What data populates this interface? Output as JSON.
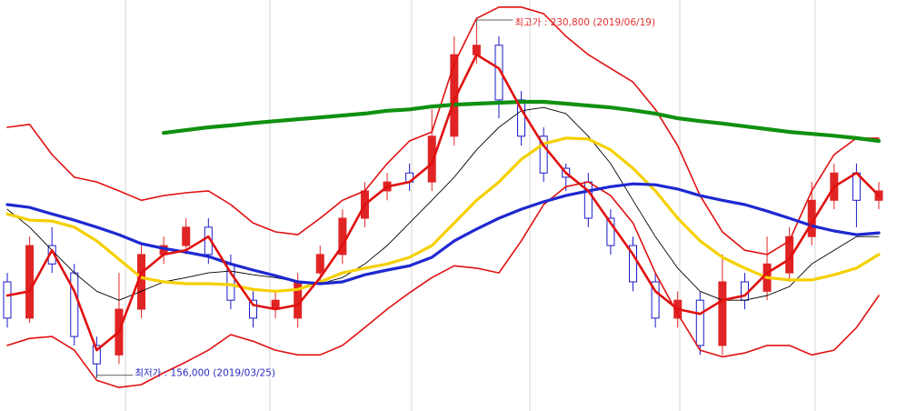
{
  "chart_data": {
    "type": "candlestick",
    "categories": [
      null,
      null,
      null,
      null,
      null,
      null,
      null,
      null,
      null,
      null,
      null,
      null,
      null,
      null,
      null,
      null,
      null,
      null,
      null,
      null,
      null,
      null,
      null,
      null,
      null,
      null,
      null,
      null,
      null,
      null,
      null,
      null,
      null,
      null,
      null,
      null,
      null,
      null,
      null,
      null
    ],
    "open": [
      176400,
      168700,
      184100,
      178300,
      162900,
      160900,
      170600,
      182200,
      184100,
      188000,
      180200,
      172500,
      170600,
      168700,
      178300,
      182200,
      189900,
      195700,
      199500,
      197600,
      207300,
      224600,
      226600,
      215000,
      207300,
      200500,
      197600,
      189900,
      184100,
      176400,
      168700,
      172500,
      162900,
      176400,
      174400,
      178300,
      186000,
      193700,
      199500,
      193700
    ],
    "high": [
      178300,
      186000,
      188000,
      180200,
      164800,
      178300,
      184100,
      186000,
      189900,
      189900,
      182200,
      174400,
      174400,
      178300,
      184100,
      191800,
      197600,
      199500,
      201500,
      213000,
      228500,
      230800,
      228500,
      216900,
      209200,
      201500,
      199500,
      191800,
      186000,
      178300,
      174400,
      174400,
      182200,
      178300,
      186000,
      188000,
      197600,
      201500,
      201500,
      197600
    ],
    "low": [
      166700,
      167700,
      178300,
      162900,
      156000,
      159000,
      168700,
      180200,
      182200,
      180200,
      170600,
      166700,
      168700,
      166700,
      176400,
      180200,
      188000,
      193700,
      195700,
      195700,
      205300,
      222700,
      211100,
      205300,
      197600,
      195700,
      188000,
      182200,
      174400,
      166700,
      166700,
      160900,
      160900,
      170600,
      172500,
      176400,
      184100,
      191800,
      188000,
      191800
    ],
    "close": [
      168700,
      184100,
      180200,
      164800,
      159000,
      170600,
      182200,
      184100,
      188000,
      182200,
      172500,
      168700,
      172500,
      176400,
      182200,
      189900,
      195700,
      197600,
      197600,
      207300,
      224600,
      226600,
      215000,
      207300,
      199500,
      198600,
      189900,
      184100,
      176400,
      168700,
      172500,
      162900,
      176400,
      172500,
      180200,
      186000,
      193700,
      199500,
      193700,
      195700
    ],
    "up_color": "#e02424",
    "down_color": "#1a1ac8",
    "series": [
      {
        "color": "#e01010",
        "line_width": 1.6,
        "values": [
          209200,
          209800,
          203400,
          198600,
          197600,
          195700,
          193700,
          194700,
          195300,
          195700,
          192800,
          188900,
          187000,
          186400,
          189900,
          193700,
          195700,
          201500,
          206300,
          208200,
          222700,
          232300,
          234700,
          234700,
          233300,
          228500,
          224600,
          221700,
          218800,
          213000,
          205300,
          194700,
          187000,
          183100,
          182200,
          185100,
          195700,
          203400,
          206900,
          206900
        ]
      },
      {
        "color": "#e01010",
        "line_width": 1.6,
        "values": [
          162900,
          164400,
          164800,
          161900,
          155500,
          154000,
          154600,
          157100,
          159400,
          161900,
          165200,
          163800,
          161900,
          160900,
          160900,
          162900,
          166700,
          170600,
          174100,
          177300,
          179800,
          179300,
          178300,
          185100,
          192800,
          196600,
          197600,
          194700,
          188900,
          178300,
          169600,
          161900,
          160500,
          161300,
          162900,
          162900,
          160900,
          161900,
          166700,
          173500
        ]
      },
      {
        "color": "#000000",
        "line_width": 0.9,
        "values": [
          191800,
          188000,
          183100,
          178300,
          174400,
          172500,
          174400,
          176400,
          177300,
          178300,
          178700,
          177900,
          177300,
          176400,
          176000,
          177300,
          180200,
          184100,
          188900,
          193700,
          198600,
          204400,
          209200,
          212700,
          213400,
          212100,
          207300,
          201500,
          193700,
          186000,
          179300,
          174400,
          172500,
          172500,
          173500,
          175400,
          180200,
          183100,
          186000,
          186000
        ]
      },
      {
        "color": "#f5d000",
        "line_width": 3.2,
        "values": [
          190800,
          189500,
          189300,
          188000,
          185100,
          181200,
          177300,
          176400,
          176000,
          176000,
          175800,
          174800,
          174400,
          174800,
          176400,
          178300,
          179300,
          180200,
          181600,
          184100,
          188900,
          193700,
          197600,
          202400,
          205700,
          206900,
          206700,
          204400,
          200500,
          195700,
          189900,
          185100,
          181600,
          179300,
          177300,
          176800,
          176800,
          177900,
          179300,
          182200
        ]
      },
      {
        "color": "#1e28d0",
        "line_width": 3.2,
        "values": [
          192800,
          192200,
          190800,
          189500,
          188000,
          186400,
          184500,
          183500,
          182700,
          181800,
          180200,
          178900,
          177700,
          176400,
          176000,
          176400,
          177900,
          178900,
          179800,
          181600,
          185100,
          187600,
          189900,
          191800,
          193400,
          194700,
          195700,
          196600,
          197200,
          197000,
          196100,
          194700,
          193700,
          192800,
          191400,
          189900,
          188300,
          187200,
          186400,
          186800
        ]
      },
      {
        "color": "#109010",
        "line_width": 4.2,
        "values": [
          null,
          null,
          null,
          null,
          null,
          null,
          null,
          208000,
          208600,
          209200,
          209600,
          210100,
          210500,
          210900,
          211300,
          211700,
          212100,
          212700,
          213000,
          213600,
          214000,
          214200,
          214400,
          214600,
          214600,
          214200,
          213800,
          213400,
          212800,
          212100,
          211100,
          210500,
          210000,
          209400,
          208800,
          208200,
          207800,
          207400,
          206900,
          206300
        ]
      },
      {
        "color": "#e01010",
        "line_width": 2.6,
        "values": [
          173500,
          174400,
          183100,
          174400,
          161900,
          165800,
          178300,
          182200,
          183100,
          186000,
          178300,
          171500,
          170600,
          171500,
          177300,
          184100,
          192800,
          196600,
          197600,
          201500,
          215000,
          224600,
          221700,
          213000,
          205300,
          199500,
          195700,
          188900,
          182200,
          174400,
          170600,
          169600,
          172500,
          173500,
          178300,
          181200,
          188900,
          196600,
          199500,
          194700
        ]
      }
    ],
    "ylim": [
      149000,
      236200
    ],
    "annotations": [
      {
        "label": "최고가 : 230,800 (2019/06/19)",
        "value": 230800,
        "color": "#e03030"
      },
      {
        "label": "최저가 : 156,000 (2019/03/25)",
        "value": 156000,
        "color": "#2a2ac0"
      }
    ]
  }
}
